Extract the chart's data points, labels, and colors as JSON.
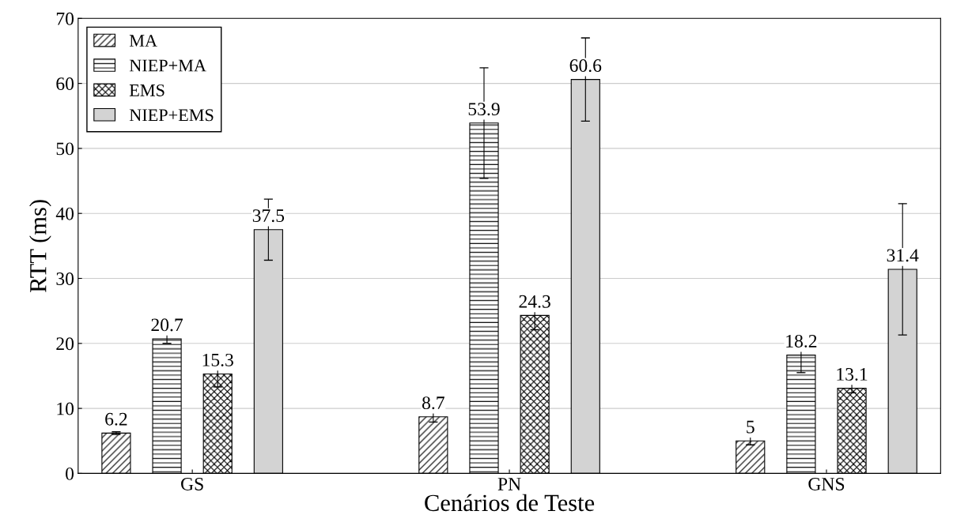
{
  "chart_data": {
    "type": "bar",
    "xlabel": "Cenários de Teste",
    "ylabel": "RTT (ms)",
    "categories": [
      "GS",
      "PN",
      "GNS"
    ],
    "series": [
      {
        "name": "MA",
        "color": "#000000",
        "values": [
          6.2,
          8.7,
          5
        ],
        "errors": [
          0.2,
          0.8,
          0.6
        ]
      },
      {
        "name": "NIEP+MA",
        "color": "#000000",
        "values": [
          20.7,
          53.9,
          18.2
        ],
        "errors": [
          0.7,
          8.5,
          2.7
        ]
      },
      {
        "name": "EMS",
        "color": "#000000",
        "values": [
          15.3,
          24.3,
          13.1
        ],
        "errors": [
          2.0,
          2.2,
          0.7
        ]
      },
      {
        "name": "NIEP+EMS",
        "color": "#d3d3d3",
        "values": [
          37.5,
          60.6,
          31.4
        ],
        "errors": [
          4.7,
          6.4,
          10.1
        ]
      }
    ],
    "ylim": [
      0,
      70
    ],
    "yticks": [
      0,
      10,
      20,
      30,
      40,
      50,
      60,
      70
    ],
    "grid": "y",
    "legend": "top left",
    "data_labels": true
  }
}
